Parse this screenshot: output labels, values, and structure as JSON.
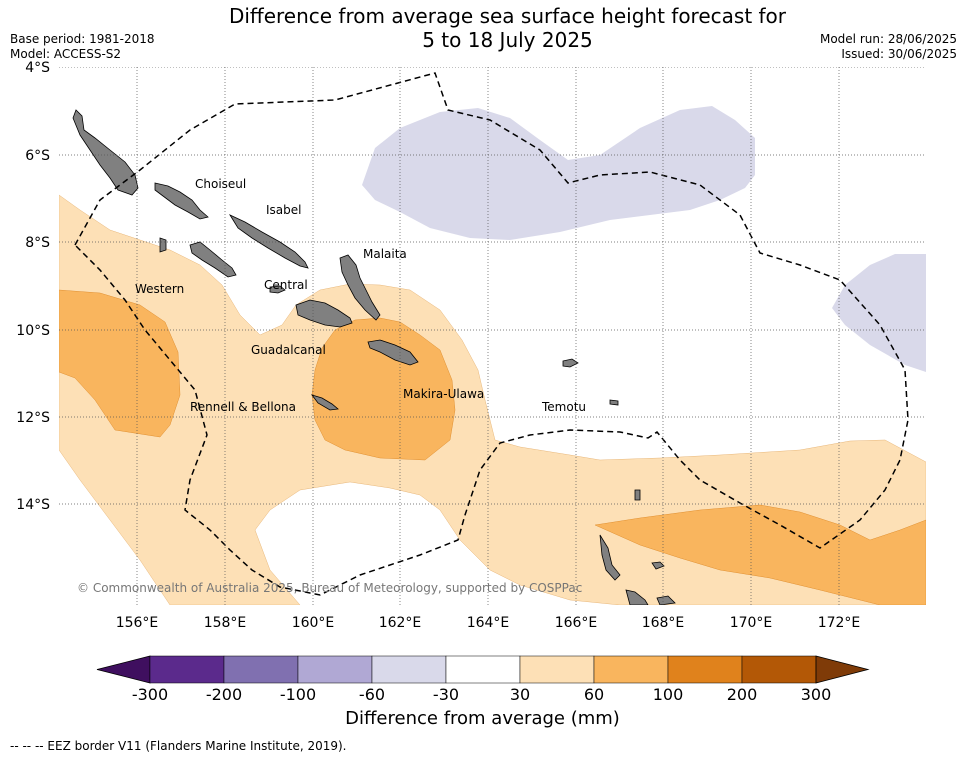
{
  "title_line1": "Difference from average sea surface height forecast for",
  "title_line2": "5 to 18 July 2025",
  "base_period": "Base period: 1981-2018",
  "model": "Model: ACCESS-S2",
  "model_run": "Model run: 28/06/2025",
  "issued": "Issued: 30/06/2025",
  "map": {
    "lat_labels": [
      "4°S",
      "6°S",
      "8°S",
      "10°S",
      "12°S",
      "14°S"
    ],
    "lon_labels": [
      "156°E",
      "158°E",
      "160°E",
      "162°E",
      "164°E",
      "166°E",
      "168°E",
      "170°E",
      "172°E"
    ],
    "regions": [
      {
        "name": "Choiseul"
      },
      {
        "name": "Isabel"
      },
      {
        "name": "Malaita"
      },
      {
        "name": "Western"
      },
      {
        "name": "Central"
      },
      {
        "name": "Guadalcanal"
      },
      {
        "name": "Rennell & Bellona"
      },
      {
        "name": "Makira-Ulawa"
      },
      {
        "name": "Temotu"
      }
    ],
    "copyright": "© Commonwealth of Australia 2025, Bureau of Meteorology, supported by COSPPac"
  },
  "colorbar": {
    "colors": [
      "#3f0f5f",
      "#5b2a8c",
      "#8070b0",
      "#b0a8d4",
      "#d9d9ea",
      "#ffffff",
      "#fde0b6",
      "#f9b55e",
      "#e0821c",
      "#b35806",
      "#7f3b08"
    ],
    "tick_labels": [
      "-300",
      "-200",
      "-100",
      "-60",
      "-30",
      "30",
      "60",
      "100",
      "200",
      "300"
    ],
    "title": "Difference from average (mm)"
  },
  "legend_note": "--  --  -- EEZ border V11 (Flanders Marine Institute, 2019)."
}
